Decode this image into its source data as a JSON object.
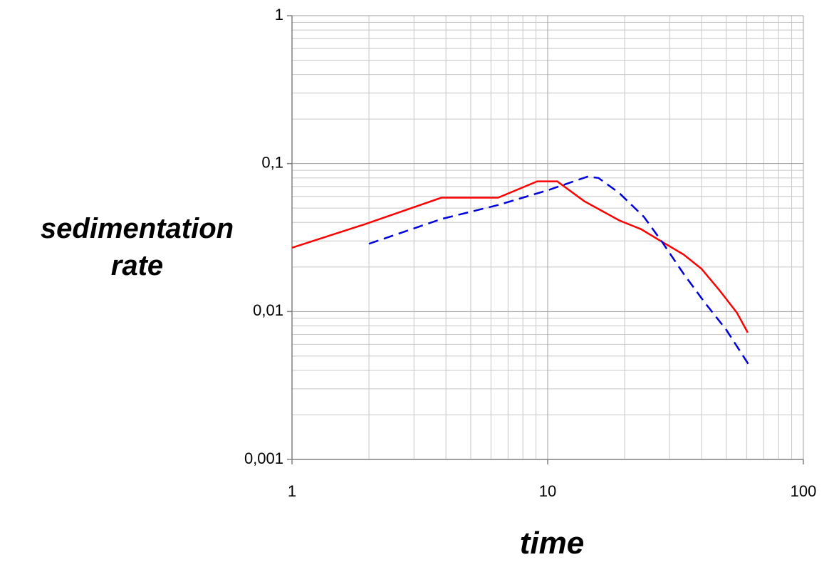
{
  "chart_data": {
    "type": "line",
    "x_label": "time",
    "y_label": "sedimentation rate",
    "xscale": "log",
    "yscale": "log",
    "xlim": [
      1,
      100
    ],
    "xticks": [
      1,
      10,
      100
    ],
    "ylim": [
      0.001,
      1
    ],
    "yticks": [
      {
        "value": 0.001,
        "label": "0,001"
      },
      {
        "value": 0.01,
        "label": "0,01"
      },
      {
        "value": 0.1,
        "label": "0,1"
      },
      1
    ],
    "grid": true,
    "minor_grid": true,
    "series": [
      {
        "color": "#ff0000",
        "style": "solid",
        "x": [
          1,
          1.9,
          3.84,
          6.4,
          9.1,
          10.9,
          13.9,
          19.1,
          23.2,
          28,
          34,
          40,
          47,
          55,
          60.6
        ],
        "values": [
          0.027,
          0.0386,
          0.0588,
          0.0588,
          0.0758,
          0.0758,
          0.0557,
          0.0412,
          0.036,
          0.0296,
          0.0243,
          0.0194,
          0.0139,
          0.0098,
          0.0072
        ]
      },
      {
        "color": "#0000dd",
        "style": "dashed",
        "x": [
          2,
          3.84,
          6.4,
          10,
          14.3,
          15.8,
          19.1,
          23.8,
          28,
          34,
          41,
          50,
          61
        ],
        "values": [
          0.0287,
          0.0422,
          0.0525,
          0.066,
          0.0816,
          0.08,
          0.063,
          0.0436,
          0.0296,
          0.018,
          0.0116,
          0.0075,
          0.0044
        ]
      }
    ]
  }
}
